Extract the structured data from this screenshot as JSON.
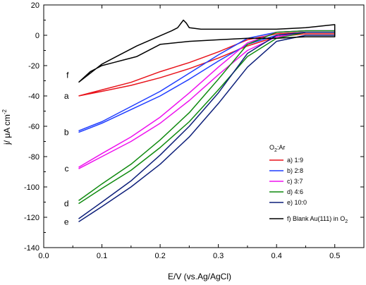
{
  "chart_data": {
    "type": "line",
    "xlabel": "E/V (vs.Ag/AgCl)",
    "ylabel_main": "j/ μA cm",
    "ylabel_sup": "-2",
    "xlim": [
      0.0,
      0.55
    ],
    "ylim": [
      -140,
      20
    ],
    "x_ticks": [
      "0.0",
      "0.1",
      "0.2",
      "0.3",
      "0.4",
      "0.5"
    ],
    "y_ticks": [
      "20",
      "0",
      "-20",
      "-40",
      "-60",
      "-80",
      "-100",
      "-120",
      "-140"
    ],
    "legend": {
      "title_main": "O",
      "title_sub": "2",
      "title_rest": ":Ar",
      "placement": "right",
      "blank_label_main": "f) Blank Au(111) in O",
      "blank_label_sub": "2"
    },
    "series": [
      {
        "name": "a) 1:9",
        "letter": "a",
        "color": "#e8141c",
        "forward": [
          [
            0.06,
            -40
          ],
          [
            0.1,
            -37
          ],
          [
            0.15,
            -33
          ],
          [
            0.2,
            -28
          ],
          [
            0.25,
            -22
          ],
          [
            0.3,
            -15
          ],
          [
            0.35,
            -7
          ],
          [
            0.4,
            -1
          ],
          [
            0.45,
            1
          ],
          [
            0.5,
            1
          ]
        ],
        "backward": [
          [
            0.5,
            2
          ],
          [
            0.45,
            2
          ],
          [
            0.4,
            1
          ],
          [
            0.35,
            -3
          ],
          [
            0.3,
            -11
          ],
          [
            0.25,
            -18
          ],
          [
            0.2,
            -24
          ],
          [
            0.15,
            -31
          ],
          [
            0.1,
            -36
          ],
          [
            0.06,
            -40
          ]
        ]
      },
      {
        "name": "b) 2:8",
        "letter": "b",
        "color": "#1f3dff",
        "forward": [
          [
            0.06,
            -64
          ],
          [
            0.1,
            -58
          ],
          [
            0.15,
            -49
          ],
          [
            0.2,
            -40
          ],
          [
            0.25,
            -29
          ],
          [
            0.3,
            -17
          ],
          [
            0.35,
            -6
          ],
          [
            0.4,
            0
          ],
          [
            0.45,
            2
          ],
          [
            0.5,
            2
          ]
        ],
        "backward": [
          [
            0.5,
            3
          ],
          [
            0.45,
            3
          ],
          [
            0.4,
            2
          ],
          [
            0.35,
            -2
          ],
          [
            0.3,
            -13
          ],
          [
            0.25,
            -25
          ],
          [
            0.2,
            -37
          ],
          [
            0.15,
            -47
          ],
          [
            0.1,
            -57
          ],
          [
            0.06,
            -63
          ]
        ]
      },
      {
        "name": "c) 3:7",
        "letter": "c",
        "color": "#ee10ee",
        "forward": [
          [
            0.06,
            -88
          ],
          [
            0.1,
            -80
          ],
          [
            0.15,
            -70
          ],
          [
            0.2,
            -58
          ],
          [
            0.25,
            -43
          ],
          [
            0.3,
            -26
          ],
          [
            0.35,
            -10
          ],
          [
            0.4,
            -1
          ],
          [
            0.45,
            2
          ],
          [
            0.5,
            2
          ]
        ],
        "backward": [
          [
            0.5,
            3
          ],
          [
            0.45,
            3
          ],
          [
            0.4,
            2
          ],
          [
            0.35,
            -5
          ],
          [
            0.3,
            -21
          ],
          [
            0.25,
            -38
          ],
          [
            0.2,
            -54
          ],
          [
            0.15,
            -67
          ],
          [
            0.1,
            -78
          ],
          [
            0.06,
            -87
          ]
        ]
      },
      {
        "name": "d) 4:6",
        "letter": "d",
        "color": "#0f8a0f",
        "forward": [
          [
            0.06,
            -111
          ],
          [
            0.1,
            -101
          ],
          [
            0.15,
            -89
          ],
          [
            0.2,
            -74
          ],
          [
            0.25,
            -57
          ],
          [
            0.3,
            -36
          ],
          [
            0.35,
            -14
          ],
          [
            0.4,
            -2
          ],
          [
            0.45,
            2
          ],
          [
            0.5,
            2
          ]
        ],
        "backward": [
          [
            0.5,
            3
          ],
          [
            0.45,
            3
          ],
          [
            0.4,
            2
          ],
          [
            0.35,
            -6
          ],
          [
            0.3,
            -29
          ],
          [
            0.25,
            -51
          ],
          [
            0.2,
            -69
          ],
          [
            0.15,
            -85
          ],
          [
            0.1,
            -98
          ],
          [
            0.06,
            -109
          ]
        ]
      },
      {
        "name": "e) 10:0",
        "letter": "e",
        "color": "#0d1f7a",
        "forward": [
          [
            0.06,
            -123
          ],
          [
            0.1,
            -113
          ],
          [
            0.15,
            -100
          ],
          [
            0.2,
            -85
          ],
          [
            0.25,
            -67
          ],
          [
            0.3,
            -45
          ],
          [
            0.35,
            -21
          ],
          [
            0.4,
            -4
          ],
          [
            0.45,
            0
          ],
          [
            0.5,
            0
          ]
        ],
        "backward": [
          [
            0.5,
            2
          ],
          [
            0.45,
            2
          ],
          [
            0.4,
            0
          ],
          [
            0.35,
            -12
          ],
          [
            0.3,
            -38
          ],
          [
            0.25,
            -60
          ],
          [
            0.2,
            -79
          ],
          [
            0.15,
            -96
          ],
          [
            0.1,
            -110
          ],
          [
            0.06,
            -121
          ]
        ]
      },
      {
        "name": "f) Blank Au(111) in O2",
        "letter": "f",
        "color": "#000000",
        "forward": [
          [
            0.06,
            -31
          ],
          [
            0.08,
            -25
          ],
          [
            0.1,
            -19
          ],
          [
            0.13,
            -13
          ],
          [
            0.16,
            -7
          ],
          [
            0.19,
            -2
          ],
          [
            0.22,
            3
          ],
          [
            0.23,
            5
          ],
          [
            0.24,
            10
          ],
          [
            0.245,
            8
          ],
          [
            0.25,
            5
          ],
          [
            0.27,
            4
          ],
          [
            0.3,
            4
          ],
          [
            0.35,
            4
          ],
          [
            0.4,
            4
          ],
          [
            0.45,
            5
          ],
          [
            0.5,
            7
          ]
        ],
        "backward": [
          [
            0.5,
            -1
          ],
          [
            0.45,
            -1
          ],
          [
            0.4,
            -2
          ],
          [
            0.35,
            -2
          ],
          [
            0.3,
            -3
          ],
          [
            0.25,
            -4
          ],
          [
            0.2,
            -6
          ],
          [
            0.17,
            -12
          ],
          [
            0.16,
            -14
          ],
          [
            0.14,
            -16
          ],
          [
            0.12,
            -18
          ],
          [
            0.1,
            -20
          ],
          [
            0.08,
            -24
          ],
          [
            0.06,
            -31
          ]
        ]
      }
    ]
  }
}
